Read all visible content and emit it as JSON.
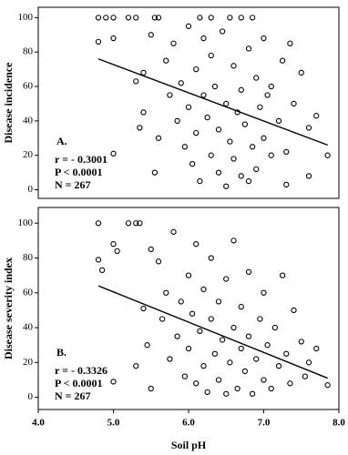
{
  "chart_data": [
    {
      "type": "scatter",
      "ylabel": "Disease incidence",
      "annotations": [
        "A.",
        "r = - 0.3001",
        "P < 0.0001",
        "N = 267"
      ],
      "xlim": [
        4.0,
        8.0
      ],
      "ylim": [
        -5,
        106
      ],
      "yticks": [
        0,
        20,
        40,
        60,
        80,
        100
      ],
      "x": [
        4.8,
        4.9,
        5.0,
        5.2,
        5.3,
        5.55,
        5.6,
        6.15,
        6.3,
        6.55,
        6.7,
        6.85,
        4.8,
        5.0,
        5.0,
        5.3,
        5.4,
        5.4,
        5.35,
        5.5,
        5.55,
        5.6,
        5.7,
        5.75,
        5.8,
        5.85,
        5.9,
        5.95,
        6.0,
        6.0,
        6.05,
        6.1,
        6.1,
        6.15,
        6.2,
        6.2,
        6.25,
        6.3,
        6.3,
        6.35,
        6.4,
        6.4,
        6.45,
        6.5,
        6.5,
        6.55,
        6.6,
        6.6,
        6.65,
        6.7,
        6.7,
        6.75,
        6.8,
        6.8,
        6.85,
        6.9,
        6.9,
        6.95,
        7.0,
        7.0,
        7.05,
        7.1,
        7.1,
        7.2,
        7.25,
        7.3,
        7.35,
        7.4,
        7.5,
        7.6,
        7.7,
        7.85,
        7.6,
        7.3
      ],
      "y": [
        100,
        100,
        100,
        100,
        100,
        100,
        100,
        100,
        100,
        100,
        100,
        100,
        86,
        88,
        21,
        63,
        68,
        45,
        36,
        90,
        10,
        30,
        75,
        55,
        85,
        40,
        62,
        25,
        95,
        48,
        15,
        70,
        33,
        5,
        88,
        55,
        42,
        20,
        78,
        60,
        10,
        35,
        92,
        50,
        2,
        28,
        72,
        18,
        45,
        8,
        58,
        38,
        82,
        5,
        25,
        65,
        12,
        48,
        30,
        88,
        55,
        20,
        60,
        40,
        75,
        3,
        85,
        50,
        68,
        36,
        43,
        20,
        8,
        22
      ],
      "fit_line": {
        "x": [
          4.8,
          7.85
        ],
        "y": [
          76,
          26
        ]
      }
    },
    {
      "type": "scatter",
      "ylabel": "Disease severity index",
      "xlabel": "Soil pH",
      "annotations": [
        "B.",
        "r = - 0.3326",
        "P < 0.0001",
        "N = 267"
      ],
      "xlim": [
        4.0,
        8.0
      ],
      "ylim": [
        -7,
        109
      ],
      "yticks": [
        0,
        20,
        40,
        60,
        80,
        100
      ],
      "xticks": [
        {
          "value": 4,
          "label": "4.0"
        },
        {
          "value": 5,
          "label": "5.0"
        },
        {
          "value": 6,
          "label": "6.0"
        },
        {
          "value": 7,
          "label": "7.0"
        },
        {
          "value": 8,
          "label": "8.0"
        }
      ],
      "x": [
        4.8,
        4.8,
        4.85,
        5.0,
        5.05,
        5.0,
        5.2,
        5.3,
        5.35,
        5.3,
        5.4,
        5.45,
        5.5,
        5.5,
        5.6,
        5.65,
        5.7,
        5.75,
        5.8,
        5.85,
        5.9,
        5.95,
        6.0,
        6.0,
        6.05,
        6.1,
        6.1,
        6.15,
        6.2,
        6.2,
        6.25,
        6.3,
        6.3,
        6.35,
        6.4,
        6.4,
        6.45,
        6.5,
        6.5,
        6.55,
        6.6,
        6.6,
        6.65,
        6.7,
        6.7,
        6.75,
        6.8,
        6.8,
        6.85,
        6.9,
        6.95,
        7.0,
        7.0,
        7.05,
        7.1,
        7.15,
        7.2,
        7.25,
        7.3,
        7.35,
        7.4,
        7.5,
        7.6,
        7.7,
        7.85,
        7.55
      ],
      "y": [
        100,
        79,
        73,
        88,
        84,
        9,
        100,
        100,
        100,
        18,
        51,
        30,
        5,
        85,
        78,
        45,
        60,
        22,
        95,
        35,
        55,
        12,
        70,
        28,
        48,
        88,
        8,
        38,
        62,
        18,
        3,
        45,
        80,
        25,
        10,
        55,
        33,
        68,
        2,
        20,
        40,
        90,
        5,
        28,
        52,
        15,
        35,
        72,
        2,
        22,
        45,
        10,
        60,
        30,
        5,
        40,
        18,
        70,
        25,
        8,
        50,
        32,
        20,
        28,
        7,
        12
      ],
      "fit_line": {
        "x": [
          4.8,
          7.85
        ],
        "y": [
          64,
          11
        ]
      }
    }
  ]
}
